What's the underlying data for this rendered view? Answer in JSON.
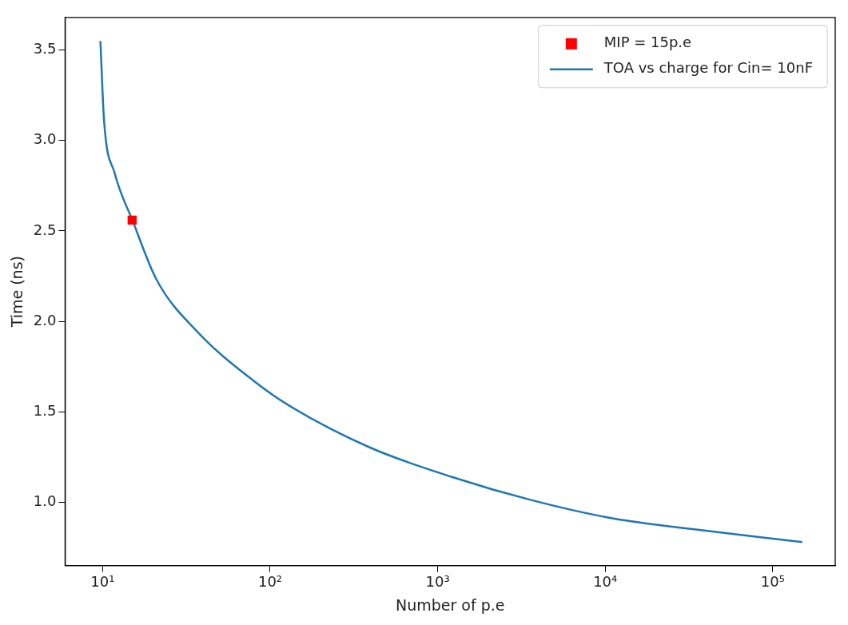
{
  "chart_data": {
    "type": "line",
    "xlabel": "Number of p.e",
    "ylabel": "Time (ns)",
    "log": "x",
    "grid": false,
    "legend": "top right",
    "xlim": [
      5.97,
      236000
    ],
    "ylim": [
      0.65,
      3.68
    ],
    "xticks": [
      {
        "value": 10,
        "label": "10¹"
      },
      {
        "value": 100,
        "label": "10²"
      },
      {
        "value": 1000,
        "label": "10³"
      },
      {
        "value": 10000,
        "label": "10⁴"
      },
      {
        "value": 100000,
        "label": "10⁵"
      }
    ],
    "yticks": [
      {
        "value": 1,
        "label": "1.0"
      },
      1.5,
      {
        "value": 2,
        "label": "2.0"
      },
      2.5,
      {
        "value": 3,
        "label": "3.0"
      },
      3.5
    ],
    "series": [
      {
        "name": "MIP = 15p.e",
        "type": "scatter",
        "marker": "square",
        "color": "#ff0000",
        "x": [
          15
        ],
        "values": [
          2.56
        ]
      },
      {
        "name": "TOA vs charge for Cin= 10nF",
        "marker": "none",
        "line_style": "solid",
        "color": "#1f77b4",
        "x": [
          9.7,
          10.2,
          11.8,
          15.2,
          21,
          37,
          80,
          132,
          400,
          1215,
          3690,
          11200,
          34000,
          150000
        ],
        "values": [
          3.55,
          3.11,
          2.82,
          2.55,
          2.23,
          1.94,
          1.67,
          1.53,
          1.3,
          1.14,
          1.01,
          0.91,
          0.85,
          0.78
        ]
      }
    ]
  }
}
